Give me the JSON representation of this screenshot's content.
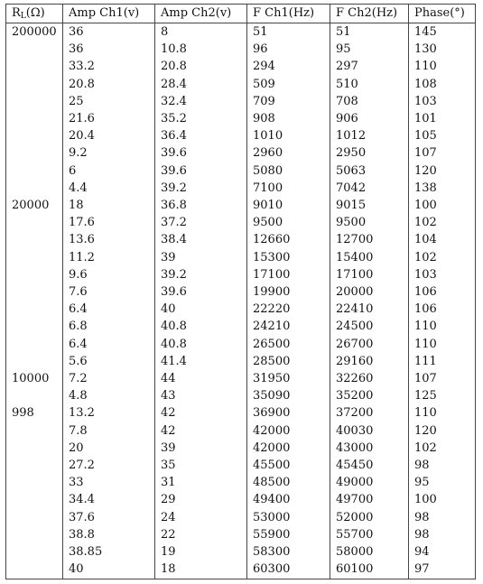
{
  "table": {
    "headers": {
      "rl_main": "R",
      "rl_sub": "L",
      "rl_unit": "(Ω)",
      "amp1": "Amp Ch1(v)",
      "amp2": "Amp Ch2(v)",
      "f1": "F Ch1(Hz)",
      "f2": "F Ch2(Hz)",
      "phase": "Phase(°)"
    },
    "rows": [
      [
        "200000",
        "36",
        "8",
        "51",
        "51",
        "145"
      ],
      [
        "",
        "36",
        "10.8",
        "96",
        "95",
        "130"
      ],
      [
        "",
        "33.2",
        "20.8",
        "294",
        "297",
        "110"
      ],
      [
        "",
        "20.8",
        "28.4",
        "509",
        "510",
        "108"
      ],
      [
        "",
        "25",
        "32.4",
        "709",
        "708",
        "103"
      ],
      [
        "",
        "21.6",
        "35.2",
        "908",
        "906",
        "101"
      ],
      [
        "",
        "20.4",
        "36.4",
        "1010",
        "1012",
        "105"
      ],
      [
        "",
        "9.2",
        "39.6",
        "2960",
        "2950",
        "107"
      ],
      [
        "",
        "6",
        "39.6",
        "5080",
        "5063",
        "120"
      ],
      [
        "",
        "4.4",
        "39.2",
        "7100",
        "7042",
        "138"
      ],
      [
        "20000",
        "18",
        "36.8",
        "9010",
        "9015",
        "100"
      ],
      [
        "",
        "17.6",
        "37.2",
        "9500",
        "9500",
        "102"
      ],
      [
        "",
        "13.6",
        "38.4",
        "12660",
        "12700",
        "104"
      ],
      [
        "",
        "11.2",
        "39",
        "15300",
        "15400",
        "102"
      ],
      [
        "",
        "9.6",
        "39.2",
        "17100",
        "17100",
        "103"
      ],
      [
        "",
        "7.6",
        "39.6",
        "19900",
        "20000",
        "106"
      ],
      [
        "",
        "6.4",
        "40",
        "22220",
        "22410",
        "106"
      ],
      [
        "",
        "6.8",
        "40.8",
        "24210",
        "24500",
        "110"
      ],
      [
        "",
        "6.4",
        "40.8",
        "26500",
        "26700",
        "110"
      ],
      [
        "",
        "5.6",
        "41.4",
        "28500",
        "29160",
        "111"
      ],
      [
        "10000",
        "7.2",
        "44",
        "31950",
        "32260",
        "107"
      ],
      [
        "",
        "4.8",
        "43",
        "35090",
        "35200",
        "125"
      ],
      [
        "998",
        "13.2",
        "42",
        "36900",
        "37200",
        "110"
      ],
      [
        "",
        "7.8",
        "42",
        "42000",
        "40030",
        "120"
      ],
      [
        "",
        "20",
        "39",
        "42000",
        "43000",
        "102"
      ],
      [
        "",
        "27.2",
        "35",
        "45500",
        "45450",
        "98"
      ],
      [
        "",
        "33",
        "31",
        "48500",
        "49000",
        "95"
      ],
      [
        "",
        "34.4",
        "29",
        "49400",
        "49700",
        "100"
      ],
      [
        "",
        "37.6",
        "24",
        "53000",
        "52000",
        "98"
      ],
      [
        "",
        "38.8",
        "22",
        "55900",
        "55700",
        "98"
      ],
      [
        "",
        "38.85",
        "19",
        "58300",
        "58000",
        "94"
      ],
      [
        "",
        "40",
        "18",
        "60300",
        "60100",
        "97"
      ]
    ]
  }
}
